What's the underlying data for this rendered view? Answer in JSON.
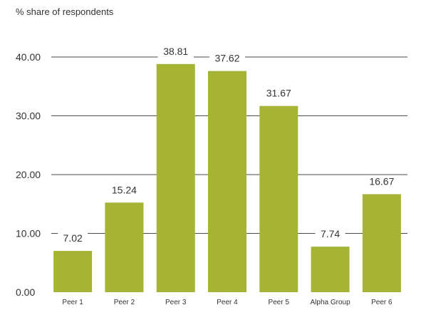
{
  "chart_data": {
    "type": "bar",
    "ylabel": "% share of respondents",
    "categories": [
      "Peer 1",
      "Peer 2",
      "Peer 3",
      "Peer 4",
      "Peer 5",
      "Alpha Group",
      "Peer 6"
    ],
    "values": [
      7.02,
      15.24,
      38.81,
      37.62,
      31.67,
      7.74,
      16.67
    ],
    "value_labels": [
      "7.02",
      "15.24",
      "38.81",
      "37.62",
      "31.67",
      "7.74",
      "16.67"
    ],
    "ylim": [
      0,
      40
    ],
    "yticks": [
      0,
      10,
      20,
      30,
      40
    ],
    "ytick_labels": [
      "0.00",
      "10.00",
      "20.00",
      "30.00",
      "40.00"
    ],
    "grid": true,
    "bar_color": "#a5b435",
    "gridline_color": "#4a4a4a"
  }
}
